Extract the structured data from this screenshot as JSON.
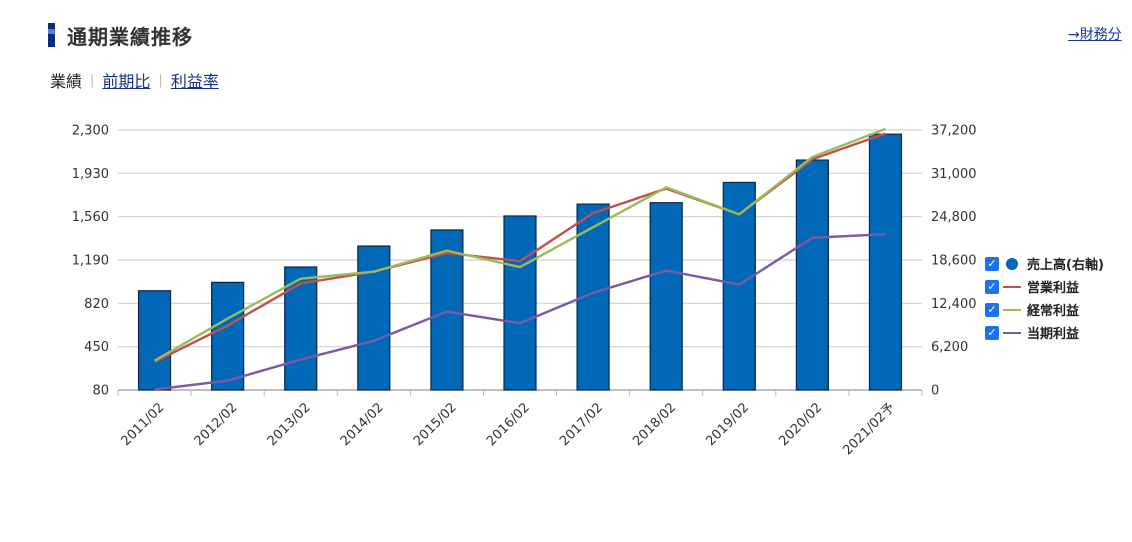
{
  "header": {
    "title": "通期業績推移",
    "finance_link": "→財務分"
  },
  "tabs": [
    {
      "label": "業績",
      "active": true
    },
    {
      "label": "前期比",
      "active": false
    },
    {
      "label": "利益率",
      "active": false
    }
  ],
  "legend": [
    {
      "label": "売上高(右軸)",
      "color": "#0068b7",
      "symbol": "dot",
      "checked": true
    },
    {
      "label": "営業利益",
      "color": "#c0504d",
      "symbol": "line",
      "checked": true
    },
    {
      "label": "経常利益",
      "color": "#9bbb59",
      "symbol": "line",
      "checked": true
    },
    {
      "label": "当期利益",
      "color": "#7a5aa6",
      "symbol": "line",
      "checked": true
    }
  ],
  "chart_data": {
    "type": "bar+line",
    "categories": [
      "2011/02",
      "2012/02",
      "2013/02",
      "2014/02",
      "2015/02",
      "2016/02",
      "2017/02",
      "2018/02",
      "2019/02",
      "2020/02",
      "2021/02予"
    ],
    "left_axis": {
      "ticks": [
        "80",
        "450",
        "820",
        "1,190",
        "1,560",
        "1,930",
        "2,300"
      ],
      "ylim": [
        80,
        2300
      ]
    },
    "right_axis": {
      "ticks": [
        "0",
        "6,200",
        "12,400",
        "18,600",
        "24,800",
        "31,000",
        "37,200"
      ],
      "ylim": [
        0,
        37200
      ]
    },
    "bars": {
      "name": "売上高(右軸)",
      "axis": "right",
      "color": "#0068b7",
      "values": [
        14200,
        15400,
        17600,
        20600,
        22900,
        24900,
        26600,
        26800,
        29700,
        32900,
        36600
      ]
    },
    "series": [
      {
        "name": "営業利益",
        "axis": "left",
        "color": "#c0504d",
        "values": [
          320,
          630,
          990,
          1090,
          1250,
          1180,
          1590,
          1800,
          1580,
          2050,
          2270
        ]
      },
      {
        "name": "経常利益",
        "axis": "left",
        "color": "#9bbb59",
        "values": [
          330,
          690,
          1030,
          1090,
          1270,
          1130,
          1470,
          1810,
          1580,
          2070,
          2310
        ]
      },
      {
        "name": "当期利益",
        "axis": "left",
        "color": "#7a5aa6",
        "values": [
          85,
          160,
          340,
          500,
          750,
          650,
          910,
          1100,
          980,
          1380,
          1410
        ]
      }
    ],
    "grid": true
  }
}
